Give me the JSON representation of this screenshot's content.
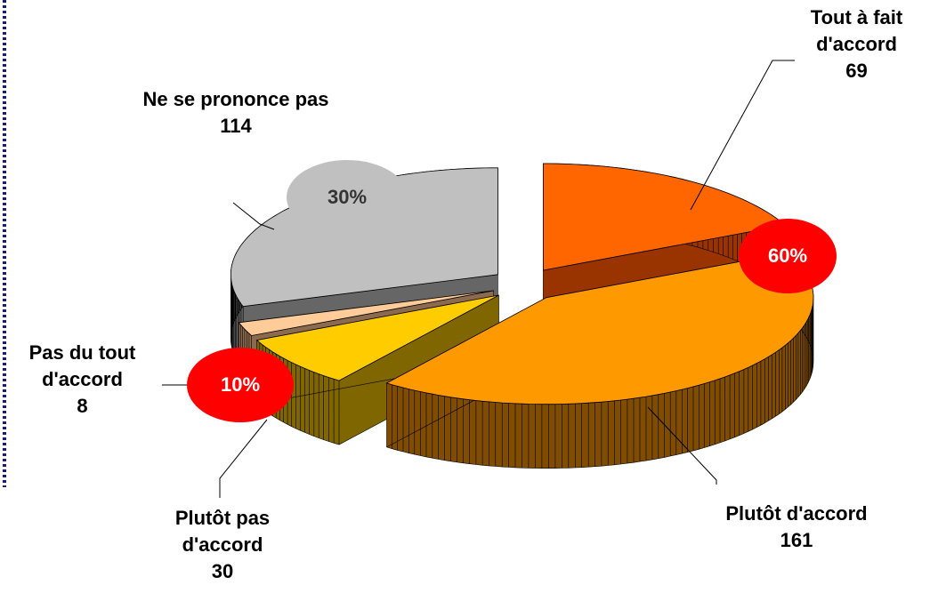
{
  "chart_data": {
    "type": "pie3d",
    "categories": [
      "Tout à fait d'accord",
      "Plutôt d'accord",
      "Plutôt pas d'accord",
      "Pas du tout d'accord",
      "Ne se prononce pas"
    ],
    "values": [
      69,
      161,
      30,
      8,
      114
    ],
    "colors": [
      "#FF6600",
      "#FF9900",
      "#FFCC00",
      "#FFCC99",
      "#C0C0C0"
    ],
    "side_colors": [
      "#993300",
      "#7F4C00",
      "#806600",
      "#8C6A4F",
      "#666666"
    ],
    "annotations": [
      "60%",
      "10%",
      "30%"
    ]
  }
}
